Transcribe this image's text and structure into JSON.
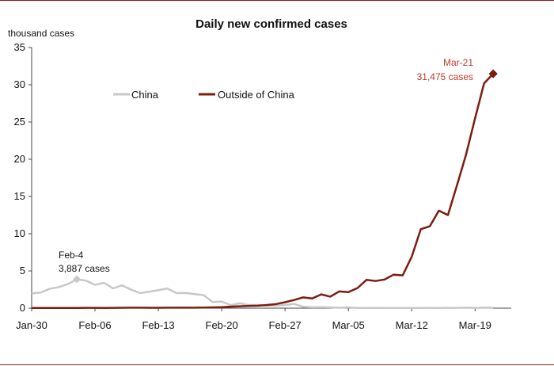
{
  "chart_data": {
    "type": "line",
    "title": "Daily new confirmed cases",
    "ylabel": "thousand cases",
    "ylim": [
      0,
      35
    ],
    "yticks": [
      0,
      5,
      10,
      15,
      20,
      25,
      30,
      35
    ],
    "xlim": [
      0,
      53
    ],
    "x_tick_labels": [
      "Jan-30",
      "Feb-06",
      "Feb-13",
      "Feb-20",
      "Feb-27",
      "Mar-05",
      "Mar-12",
      "Mar-19"
    ],
    "x_tick_days": [
      0,
      7,
      14,
      21,
      28,
      35,
      42,
      49
    ],
    "grid": false,
    "legend_position": "top-center",
    "series": [
      {
        "name": "China",
        "color": "#c8c8c8",
        "start": "Jan-30",
        "values": [
          1.98,
          2.1,
          2.6,
          2.83,
          3.24,
          3.887,
          3.69,
          3.14,
          3.4,
          2.66,
          3.06,
          2.48,
          2.02,
          2.22,
          2.42,
          2.64,
          2.02,
          2.05,
          1.89,
          1.75,
          0.82,
          0.89,
          0.4,
          0.65,
          0.41,
          0.44,
          0.33,
          0.33,
          0.43,
          0.57,
          0.2,
          0.12,
          0.14,
          0.1,
          0.05,
          0.12,
          0.03,
          0.02,
          0.04,
          0.03,
          0.02,
          0.03,
          0.02,
          0.03,
          0.04,
          0.03,
          0.05,
          0.04,
          0.06,
          0.04,
          0.06,
          0.05
        ]
      },
      {
        "name": "Outside of China",
        "color": "#7b1c10",
        "start": "Jan-30",
        "values": [
          0.02,
          0.02,
          0.03,
          0.02,
          0.03,
          0.03,
          0.04,
          0.04,
          0.03,
          0.04,
          0.05,
          0.06,
          0.07,
          0.05,
          0.05,
          0.06,
          0.07,
          0.06,
          0.07,
          0.08,
          0.1,
          0.13,
          0.2,
          0.25,
          0.3,
          0.33,
          0.42,
          0.55,
          0.8,
          1.1,
          1.45,
          1.3,
          1.85,
          1.55,
          2.25,
          2.15,
          2.7,
          3.8,
          3.65,
          3.85,
          4.5,
          4.4,
          6.9,
          10.6,
          11.0,
          13.1,
          12.5,
          16.5,
          20.6,
          25.5,
          30.2,
          31.475
        ]
      }
    ],
    "annotations": [
      {
        "lines": [
          "Feb-4",
          "3,887 cases"
        ],
        "x_day": 5,
        "y": 3.887,
        "color": "#111111"
      },
      {
        "lines": [
          "Mar-21",
          "31,475 cases"
        ],
        "x_day": 51,
        "y": 31.475,
        "color": "#c0392b"
      }
    ]
  }
}
